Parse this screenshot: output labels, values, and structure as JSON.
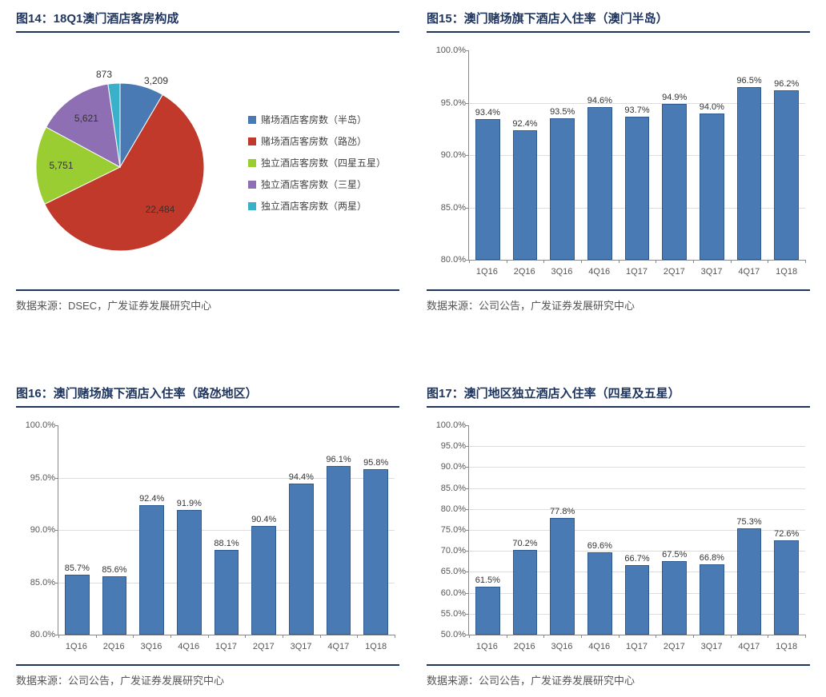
{
  "colors": {
    "title": "#1f355e",
    "bar_fill": "#4a7ab4",
    "bar_border": "#2f5a8f",
    "grid": "#dddddd",
    "axis": "#888888"
  },
  "panels": {
    "p14": {
      "title": "图14：18Q1澳门酒店客房构成",
      "source": "数据来源：DSEC，广发证券发展研究中心",
      "type": "pie",
      "slices": [
        {
          "label": "赌场酒店客房数（半岛）",
          "value": 3209,
          "color": "#4a7ab4"
        },
        {
          "label": "赌场酒店客房数（路氹）",
          "value": 22484,
          "color": "#c0392b"
        },
        {
          "label": "独立酒店客房数（四星五星）",
          "value": 5751,
          "color": "#9acd32"
        },
        {
          "label": "独立酒店客房数（三星）",
          "value": 5621,
          "color": "#8e6fb4"
        },
        {
          "label": "独立酒店客房数（两星）",
          "value": 873,
          "color": "#3bb0c9"
        }
      ],
      "label_fontsize": 12
    },
    "p15": {
      "title": "图15：澳门赌场旗下酒店入住率（澳门半岛）",
      "source": "数据来源：公司公告，广发证券发展研究中心",
      "type": "bar",
      "categories": [
        "1Q16",
        "2Q16",
        "3Q16",
        "4Q16",
        "1Q17",
        "2Q17",
        "3Q17",
        "4Q17",
        "1Q18"
      ],
      "values": [
        93.4,
        92.4,
        93.5,
        94.6,
        93.7,
        94.9,
        94.0,
        96.5,
        96.2
      ],
      "ylim": [
        80,
        100
      ],
      "ytick_step": 5,
      "pct": true,
      "bar_color": "#4a7ab4",
      "value_fontsize": 11
    },
    "p16": {
      "title": "图16：澳门赌场旗下酒店入住率（路氹地区）",
      "source": "数据来源：公司公告，广发证券发展研究中心",
      "type": "bar",
      "categories": [
        "1Q16",
        "2Q16",
        "3Q16",
        "4Q16",
        "1Q17",
        "2Q17",
        "3Q17",
        "4Q17",
        "1Q18"
      ],
      "values": [
        85.7,
        85.6,
        92.4,
        91.9,
        88.1,
        90.4,
        94.4,
        96.1,
        95.8
      ],
      "ylim": [
        80,
        100
      ],
      "ytick_step": 5,
      "pct": true,
      "bar_color": "#4a7ab4",
      "value_fontsize": 11
    },
    "p17": {
      "title": "图17：澳门地区独立酒店入住率（四星及五星）",
      "source": "数据来源：公司公告，广发证券发展研究中心",
      "type": "bar",
      "categories": [
        "1Q16",
        "2Q16",
        "3Q16",
        "4Q16",
        "1Q17",
        "2Q17",
        "3Q17",
        "4Q17",
        "1Q18"
      ],
      "values": [
        61.5,
        70.2,
        77.8,
        69.6,
        66.7,
        67.5,
        66.8,
        75.3,
        72.6
      ],
      "ylim": [
        50,
        100
      ],
      "ytick_step": 5,
      "pct": true,
      "bar_color": "#4a7ab4",
      "value_fontsize": 11
    }
  }
}
